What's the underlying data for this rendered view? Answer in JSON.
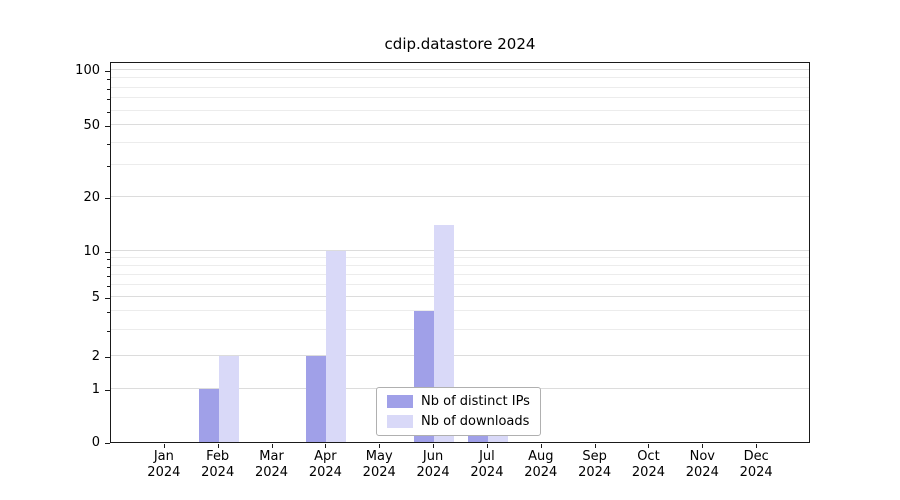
{
  "title": "cdip.datastore 2024",
  "chart_data": {
    "type": "bar",
    "title": "cdip.datastore 2024",
    "categories": [
      "Jan",
      "Feb",
      "Mar",
      "Apr",
      "May",
      "Jun",
      "Jul",
      "Aug",
      "Sep",
      "Oct",
      "Nov",
      "Dec"
    ],
    "category_year": "2024",
    "series": [
      {
        "name": "Nb of distinct IPs",
        "color": "#a0a0e8",
        "values": [
          0,
          1,
          0,
          2,
          0,
          4,
          1,
          0,
          0,
          0,
          0,
          0
        ]
      },
      {
        "name": "Nb of downloads",
        "color": "#d9d9f8",
        "values": [
          0,
          2,
          0,
          10,
          0,
          14,
          1,
          0,
          0,
          0,
          0,
          0
        ]
      }
    ],
    "y_axis": {
      "scale": "asinh-log",
      "major_ticks": [
        0,
        1,
        2,
        5,
        10,
        20,
        50,
        100
      ],
      "minor_ticks": [
        3,
        4,
        6,
        7,
        8,
        9,
        30,
        40,
        60,
        70,
        80,
        90
      ],
      "range": [
        0,
        112
      ]
    },
    "grid": "horizontal",
    "legend": {
      "position": "lower-center-inside"
    }
  }
}
